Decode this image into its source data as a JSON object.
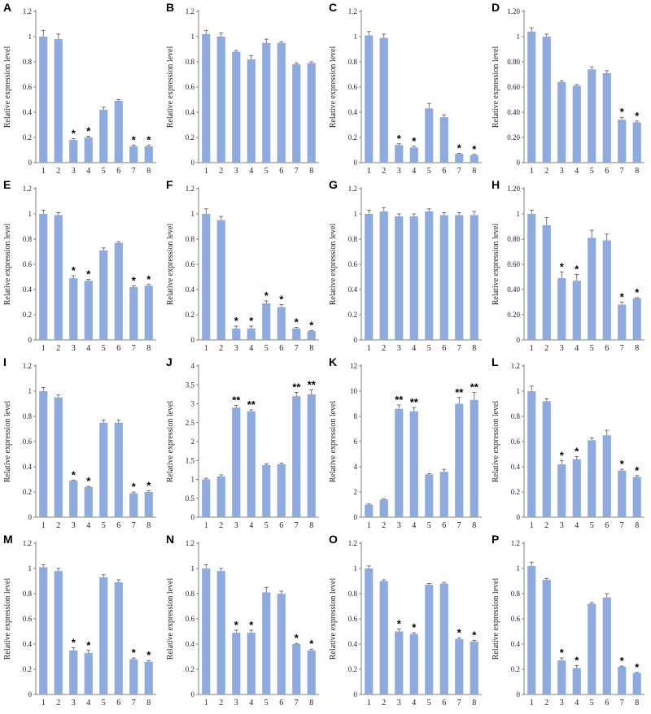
{
  "colors": {
    "bar": "#8faadc",
    "axis": "#7f7f7f",
    "error": "#555555"
  },
  "chart_data": [
    {
      "type": "bar",
      "panel": "A",
      "ylabel": "Relative expression level",
      "ylim": [
        0,
        1.2
      ],
      "yticks": [
        "0",
        "0.2",
        "0.4",
        "0.6",
        "0.8",
        "1",
        "1.2"
      ],
      "categories": [
        "1",
        "2",
        "3",
        "4",
        "5",
        "6",
        "7",
        "8"
      ],
      "values": [
        1.0,
        0.98,
        0.18,
        0.2,
        0.42,
        0.49,
        0.13,
        0.13
      ],
      "errors": [
        0.05,
        0.04,
        0.01,
        0.01,
        0.02,
        0.01,
        0.01,
        0.01
      ],
      "significance": [
        "",
        "",
        "*",
        "*",
        "",
        "",
        "*",
        "*"
      ]
    },
    {
      "type": "bar",
      "panel": "B",
      "ylabel": "Relative expression level",
      "ylim": [
        0,
        1.2
      ],
      "yticks": [
        "0",
        "0.2",
        "0.4",
        "0.6",
        "0.8",
        "1",
        "1.2"
      ],
      "categories": [
        "1",
        "2",
        "3",
        "4",
        "5",
        "6",
        "7",
        "8"
      ],
      "values": [
        1.02,
        1.0,
        0.88,
        0.82,
        0.95,
        0.95,
        0.78,
        0.79
      ],
      "errors": [
        0.03,
        0.03,
        0.01,
        0.03,
        0.03,
        0.01,
        0.01,
        0.01
      ],
      "significance": [
        "",
        "",
        "",
        "",
        "",
        "",
        "",
        ""
      ]
    },
    {
      "type": "bar",
      "panel": "C",
      "ylabel": "Relative expression level",
      "ylim": [
        0,
        1.2
      ],
      "yticks": [
        "0",
        "0.2",
        "0.4",
        "0.6",
        "0.8",
        "1",
        "1.2"
      ],
      "categories": [
        "1",
        "2",
        "3",
        "4",
        "5",
        "6",
        "7",
        "8"
      ],
      "values": [
        1.01,
        0.99,
        0.14,
        0.12,
        0.43,
        0.36,
        0.07,
        0.06
      ],
      "errors": [
        0.03,
        0.03,
        0.01,
        0.01,
        0.04,
        0.02,
        0.005,
        0.005
      ],
      "significance": [
        "",
        "",
        "*",
        "*",
        "",
        "",
        "*",
        "*"
      ]
    },
    {
      "type": "bar",
      "panel": "D",
      "ylabel": "Relative expression level",
      "ylim": [
        0,
        1.2
      ],
      "yticks": [
        "0",
        "0.20",
        "0.40",
        "0.60",
        "0.80",
        "1",
        "1.20"
      ],
      "categories": [
        "1",
        "2",
        "3",
        "4",
        "5",
        "6",
        "7",
        "8"
      ],
      "values": [
        1.04,
        1.0,
        0.64,
        0.61,
        0.74,
        0.71,
        0.34,
        0.32
      ],
      "errors": [
        0.03,
        0.02,
        0.01,
        0.01,
        0.02,
        0.02,
        0.02,
        0.01
      ],
      "significance": [
        "",
        "",
        "",
        "",
        "",
        "",
        "*",
        "*"
      ]
    },
    {
      "type": "bar",
      "panel": "E",
      "ylabel": "Relative expression level",
      "ylim": [
        0,
        1.2
      ],
      "yticks": [
        "0",
        "0.2",
        "0.4",
        "0.6",
        "0.8",
        "1",
        "1.2"
      ],
      "categories": [
        "1",
        "2",
        "3",
        "4",
        "5",
        "6",
        "7",
        "8"
      ],
      "values": [
        1.0,
        0.99,
        0.49,
        0.47,
        0.71,
        0.77,
        0.42,
        0.43
      ],
      "errors": [
        0.03,
        0.02,
        0.02,
        0.01,
        0.02,
        0.01,
        0.01,
        0.01
      ],
      "significance": [
        "",
        "",
        "*",
        "*",
        "",
        "",
        "*",
        "*"
      ]
    },
    {
      "type": "bar",
      "panel": "F",
      "ylabel": "Relative expression level",
      "ylim": [
        0,
        1.2
      ],
      "yticks": [
        "0",
        "0.2",
        "0.4",
        "0.6",
        "0.8",
        "1",
        "1.2"
      ],
      "categories": [
        "1",
        "2",
        "3",
        "4",
        "5",
        "6",
        "7",
        "8"
      ],
      "values": [
        1.0,
        0.95,
        0.09,
        0.09,
        0.29,
        0.26,
        0.09,
        0.07
      ],
      "errors": [
        0.04,
        0.03,
        0.02,
        0.02,
        0.02,
        0.02,
        0.01,
        0.005
      ],
      "significance": [
        "",
        "",
        "*",
        "*",
        "*",
        "*",
        "*",
        "*"
      ]
    },
    {
      "type": "bar",
      "panel": "G",
      "ylabel": "Relative expression level",
      "ylim": [
        0,
        1.2
      ],
      "yticks": [
        "0",
        "0.2",
        "0.4",
        "0.6",
        "0.8",
        "1",
        "1.2"
      ],
      "categories": [
        "1",
        "2",
        "3",
        "4",
        "5",
        "6",
        "7",
        "8"
      ],
      "values": [
        1.0,
        1.02,
        0.98,
        0.98,
        1.02,
        0.99,
        0.99,
        0.99
      ],
      "errors": [
        0.03,
        0.03,
        0.02,
        0.02,
        0.02,
        0.02,
        0.02,
        0.03
      ],
      "significance": [
        "",
        "",
        "",
        "",
        "",
        "",
        "",
        ""
      ]
    },
    {
      "type": "bar",
      "panel": "H",
      "ylabel": "Relative expression level",
      "ylim": [
        0,
        1.2
      ],
      "yticks": [
        "0",
        "0.20",
        "0.40",
        "0.60",
        "0.80",
        "1",
        "1.20"
      ],
      "categories": [
        "1",
        "2",
        "3",
        "4",
        "5",
        "6",
        "7",
        "8"
      ],
      "values": [
        1.0,
        0.91,
        0.49,
        0.47,
        0.81,
        0.79,
        0.28,
        0.33
      ],
      "errors": [
        0.03,
        0.06,
        0.05,
        0.05,
        0.06,
        0.05,
        0.02,
        0.005
      ],
      "significance": [
        "",
        "",
        "*",
        "*",
        "",
        "",
        "*",
        "*"
      ]
    },
    {
      "type": "bar",
      "panel": "I",
      "ylabel": "Relative expression level",
      "ylim": [
        0,
        1.2
      ],
      "yticks": [
        "0",
        "0.2",
        "0.4",
        "0.6",
        "0.8",
        "1",
        "1.2"
      ],
      "categories": [
        "1",
        "2",
        "3",
        "4",
        "5",
        "6",
        "7",
        "8"
      ],
      "values": [
        1.0,
        0.95,
        0.29,
        0.24,
        0.75,
        0.75,
        0.19,
        0.2
      ],
      "errors": [
        0.03,
        0.02,
        0.005,
        0.005,
        0.02,
        0.02,
        0.01,
        0.01
      ],
      "significance": [
        "",
        "",
        "*",
        "*",
        "",
        "",
        "*",
        "*"
      ]
    },
    {
      "type": "bar",
      "panel": "J",
      "ylabel": "Relative expression level",
      "ylim": [
        0,
        4
      ],
      "yticks": [
        "0",
        "0.5",
        "1",
        "1.5",
        "2",
        "2.5",
        "3",
        "3.5",
        "4"
      ],
      "categories": [
        "1",
        "2",
        "3",
        "4",
        "5",
        "6",
        "7",
        "8"
      ],
      "values": [
        1.0,
        1.08,
        2.9,
        2.8,
        1.38,
        1.4,
        3.2,
        3.25
      ],
      "errors": [
        0.03,
        0.04,
        0.06,
        0.04,
        0.03,
        0.03,
        0.1,
        0.12
      ],
      "significance": [
        "",
        "",
        "**",
        "**",
        "",
        "",
        "**",
        "**"
      ]
    },
    {
      "type": "bar",
      "panel": "K",
      "ylabel": "Relative expression level",
      "ylim": [
        0,
        12
      ],
      "yticks": [
        "0",
        "2",
        "4",
        "6",
        "8",
        "10",
        "12"
      ],
      "categories": [
        "1",
        "2",
        "3",
        "4",
        "5",
        "6",
        "7",
        "8"
      ],
      "values": [
        1.0,
        1.4,
        8.6,
        8.4,
        3.4,
        3.6,
        9.0,
        9.3
      ],
      "errors": [
        0.05,
        0.05,
        0.3,
        0.3,
        0.05,
        0.2,
        0.5,
        0.6
      ],
      "significance": [
        "",
        "",
        "**",
        "**",
        "",
        "",
        "**",
        "**"
      ]
    },
    {
      "type": "bar",
      "panel": "L",
      "ylabel": "Relative expression level",
      "ylim": [
        0,
        1.2
      ],
      "yticks": [
        "0",
        "0.2",
        "0.4",
        "0.6",
        "0.8",
        "1",
        "1.2"
      ],
      "categories": [
        "1",
        "2",
        "3",
        "4",
        "5",
        "6",
        "7",
        "8"
      ],
      "values": [
        1.0,
        0.92,
        0.42,
        0.46,
        0.61,
        0.65,
        0.37,
        0.32
      ],
      "errors": [
        0.04,
        0.02,
        0.03,
        0.02,
        0.02,
        0.04,
        0.01,
        0.01
      ],
      "significance": [
        "",
        "",
        "*",
        "*",
        "",
        "",
        "*",
        "*"
      ]
    },
    {
      "type": "bar",
      "panel": "M",
      "ylabel": "Relative expression level",
      "ylim": [
        0,
        1.2
      ],
      "yticks": [
        "0",
        "0.2",
        "0.4",
        "0.6",
        "0.8",
        "1",
        "1.2"
      ],
      "categories": [
        "1",
        "2",
        "3",
        "4",
        "5",
        "6",
        "7",
        "8"
      ],
      "values": [
        1.01,
        0.98,
        0.35,
        0.33,
        0.93,
        0.89,
        0.28,
        0.26
      ],
      "errors": [
        0.02,
        0.02,
        0.02,
        0.02,
        0.02,
        0.02,
        0.01,
        0.01
      ],
      "significance": [
        "",
        "",
        "*",
        "*",
        "",
        "",
        "*",
        "*"
      ]
    },
    {
      "type": "bar",
      "panel": "N",
      "ylabel": "Relative expression level",
      "ylim": [
        0,
        1.2
      ],
      "yticks": [
        "0",
        "0.2",
        "0.4",
        "0.6",
        "0.8",
        "1",
        "1.2"
      ],
      "categories": [
        "1",
        "2",
        "3",
        "4",
        "5",
        "6",
        "7",
        "8"
      ],
      "values": [
        1.0,
        0.98,
        0.49,
        0.49,
        0.81,
        0.8,
        0.4,
        0.35
      ],
      "errors": [
        0.03,
        0.02,
        0.02,
        0.02,
        0.04,
        0.02,
        0.005,
        0.01
      ],
      "significance": [
        "",
        "",
        "*",
        "*",
        "",
        "",
        "*",
        "*"
      ]
    },
    {
      "type": "bar",
      "panel": "O",
      "ylabel": "Relative expression level",
      "ylim": [
        0,
        1.2
      ],
      "yticks": [
        "0",
        "0.2",
        "0.4",
        "0.6",
        "0.8",
        "1",
        "1.2"
      ],
      "categories": [
        "1",
        "2",
        "3",
        "4",
        "5",
        "6",
        "7",
        "8"
      ],
      "values": [
        1.0,
        0.9,
        0.5,
        0.48,
        0.87,
        0.88,
        0.44,
        0.42
      ],
      "errors": [
        0.02,
        0.01,
        0.02,
        0.01,
        0.01,
        0.01,
        0.01,
        0.01
      ],
      "significance": [
        "",
        "",
        "*",
        "*",
        "",
        "",
        "*",
        "*"
      ]
    },
    {
      "type": "bar",
      "panel": "P",
      "ylabel": "Relative expression level",
      "ylim": [
        0,
        1.2
      ],
      "yticks": [
        "0",
        "0.2",
        "0.4",
        "0.6",
        "0.8",
        "1",
        "1.2"
      ],
      "categories": [
        "1",
        "2",
        "3",
        "4",
        "5",
        "6",
        "7",
        "8"
      ],
      "values": [
        1.02,
        0.91,
        0.27,
        0.21,
        0.72,
        0.77,
        0.22,
        0.17
      ],
      "errors": [
        0.03,
        0.01,
        0.02,
        0.02,
        0.01,
        0.03,
        0.005,
        0.005
      ],
      "significance": [
        "",
        "",
        "*",
        "*",
        "",
        "",
        "*",
        "*"
      ]
    }
  ]
}
